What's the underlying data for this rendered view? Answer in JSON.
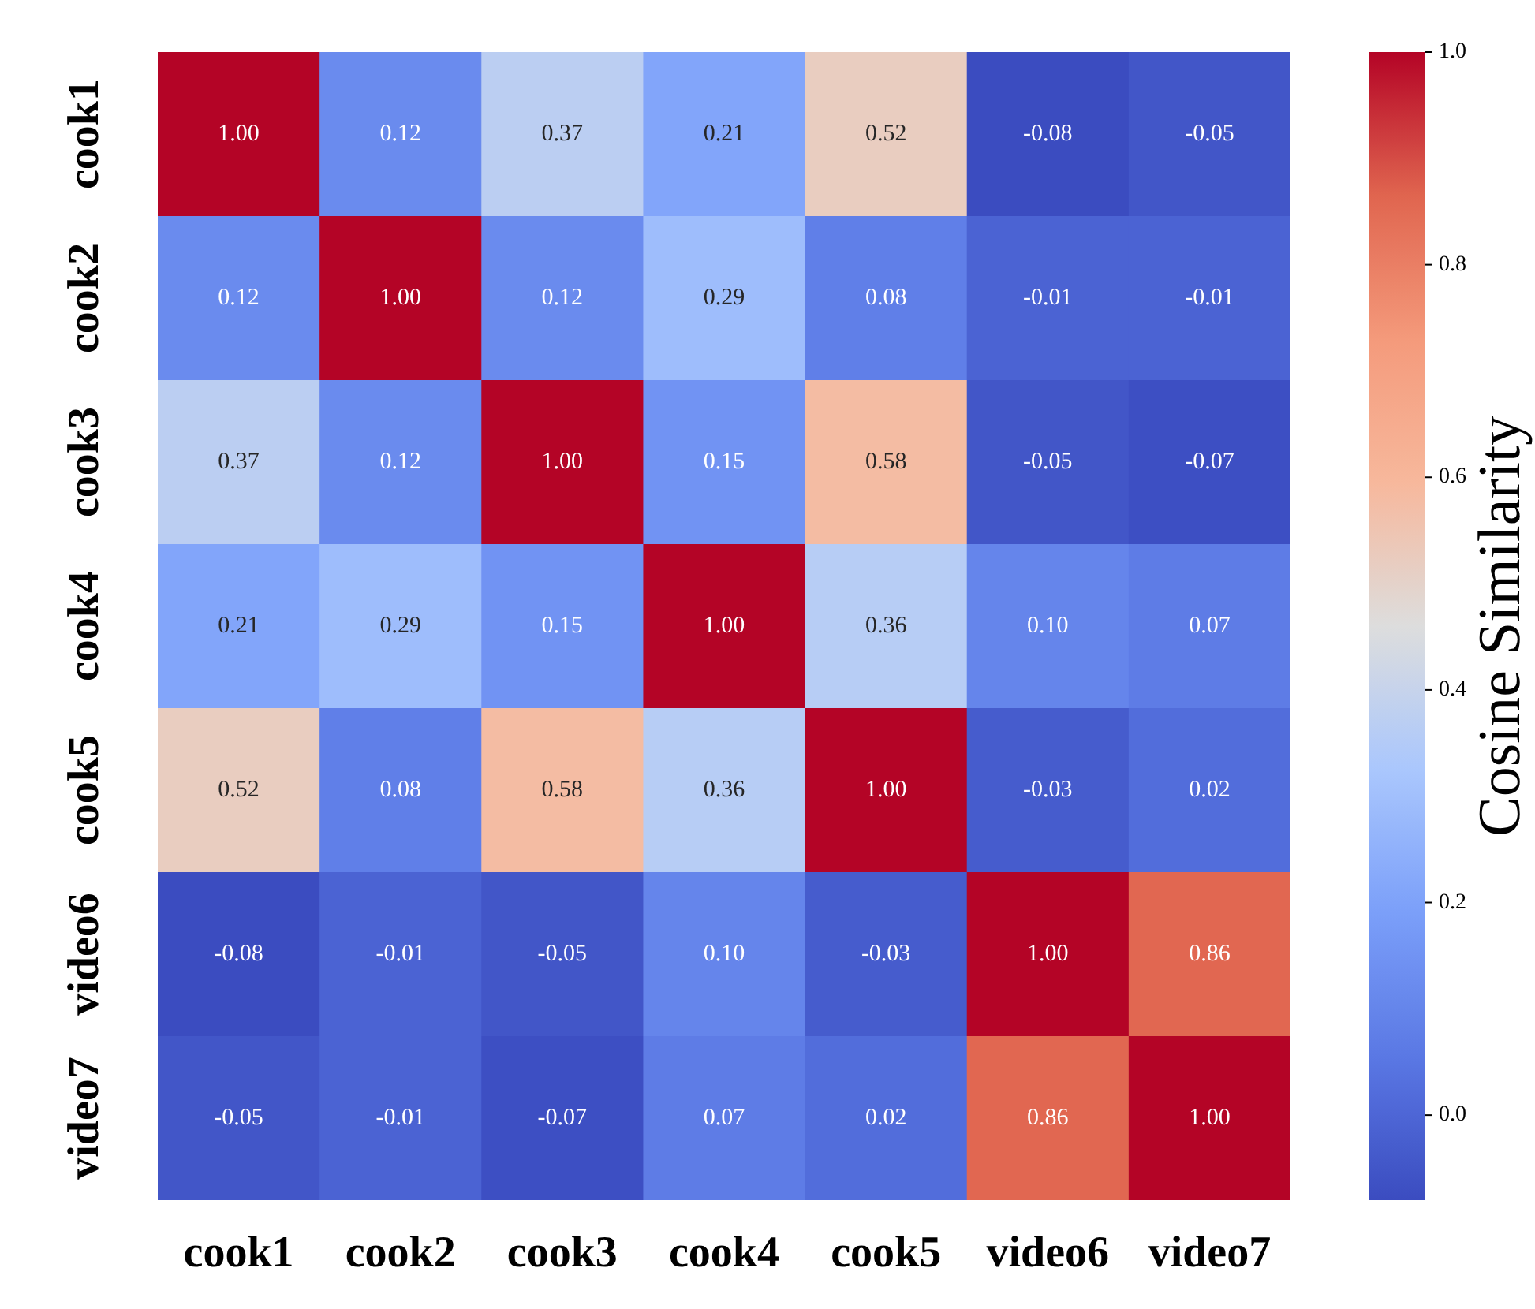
{
  "chart_data": {
    "type": "heatmap",
    "clabel": "Cosine Similarity",
    "categories": [
      "cook1",
      "cook2",
      "cook3",
      "cook4",
      "cook5",
      "video6",
      "video7"
    ],
    "y_categories": [
      "cook1",
      "cook2",
      "cook3",
      "cook4",
      "cook5",
      "video6",
      "video7"
    ],
    "cells": [
      [
        1.0,
        0.12,
        0.37,
        0.21,
        0.52,
        -0.08,
        -0.05
      ],
      [
        0.12,
        1.0,
        0.12,
        0.29,
        0.08,
        -0.01,
        -0.01
      ],
      [
        0.37,
        0.12,
        1.0,
        0.15,
        0.58,
        -0.05,
        -0.07
      ],
      [
        0.21,
        0.29,
        0.15,
        1.0,
        0.36,
        0.1,
        0.07
      ],
      [
        0.52,
        0.08,
        0.58,
        0.36,
        1.0,
        -0.03,
        0.02
      ],
      [
        -0.08,
        -0.01,
        -0.05,
        0.1,
        -0.03,
        1.0,
        0.86
      ],
      [
        -0.05,
        -0.01,
        -0.07,
        0.07,
        0.02,
        0.86,
        1.0
      ]
    ],
    "cell_labels": [
      [
        "1.00",
        "0.12",
        "0.37",
        "0.21",
        "0.52",
        "-0.08",
        "-0.05"
      ],
      [
        "0.12",
        "1.00",
        "0.12",
        "0.29",
        "0.08",
        "-0.01",
        "-0.01"
      ],
      [
        "0.37",
        "0.12",
        "1.00",
        "0.15",
        "0.58",
        "-0.05",
        "-0.07"
      ],
      [
        "0.21",
        "0.29",
        "0.15",
        "1.00",
        "0.36",
        "0.10",
        "0.07"
      ],
      [
        "0.52",
        "0.08",
        "0.58",
        "0.36",
        "1.00",
        "-0.03",
        "0.02"
      ],
      [
        "-0.08",
        "-0.01",
        "-0.05",
        "0.10",
        "-0.03",
        "1.00",
        "0.86"
      ],
      [
        "-0.05",
        "-0.01",
        "-0.07",
        "0.07",
        "0.02",
        "0.86",
        "1.00"
      ]
    ],
    "clim": [
      -0.08,
      1.0
    ],
    "cticks": [
      {
        "value": 0,
        "label": "0.0"
      },
      {
        "value": 0.2,
        "label": "0.2"
      },
      {
        "value": 0.4,
        "label": "0.4"
      },
      {
        "value": 0.6,
        "label": "0.6"
      },
      {
        "value": 0.8,
        "label": "0.8"
      },
      {
        "value": 1.0,
        "label": "1.0"
      }
    ]
  }
}
